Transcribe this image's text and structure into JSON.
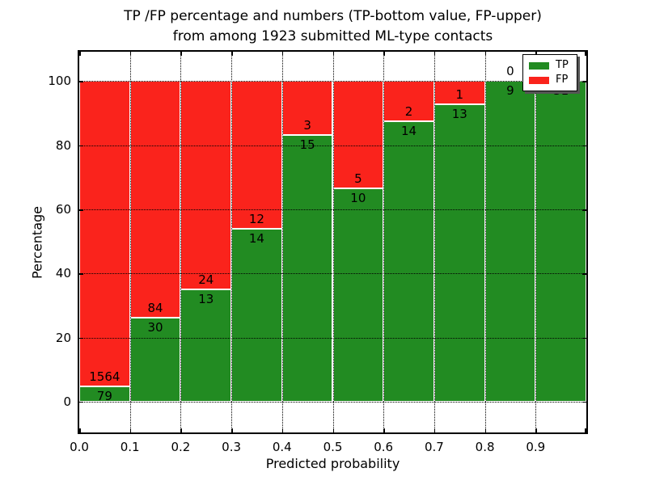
{
  "chart_data": {
    "type": "bar",
    "stacked": true,
    "normalized_to_percent": true,
    "title_line1": "TP /FP percentage and numbers (TP-bottom value, FP-upper)",
    "title_line2": "from among 1923 submitted ML-type contacts",
    "xlabel": "Predicted probability",
    "ylabel": "Percentage",
    "x_tick_labels": [
      "0.0",
      "0.1",
      "0.2",
      "0.3",
      "0.4",
      "0.5",
      "0.6",
      "0.7",
      "0.8",
      "0.9"
    ],
    "y_tick_values": [
      0,
      20,
      40,
      60,
      80,
      100
    ],
    "xlim": [
      0,
      1
    ],
    "ylim": [
      -9.6,
      109.2
    ],
    "grid": true,
    "legend_position": "upper right",
    "bin_ranges": [
      "0.0-0.1",
      "0.1-0.2",
      "0.2-0.3",
      "0.3-0.4",
      "0.4-0.5",
      "0.5-0.6",
      "0.6-0.7",
      "0.7-0.8",
      "0.8-0.9",
      "0.9-1.0"
    ],
    "series": [
      {
        "name": "TP",
        "color": "#228b22",
        "values": [
          79,
          30,
          13,
          14,
          15,
          10,
          14,
          13,
          9,
          31
        ]
      },
      {
        "name": "FP",
        "color": "#fa231c",
        "values": [
          1564,
          84,
          24,
          12,
          3,
          5,
          2,
          1,
          0,
          0
        ]
      }
    ]
  }
}
